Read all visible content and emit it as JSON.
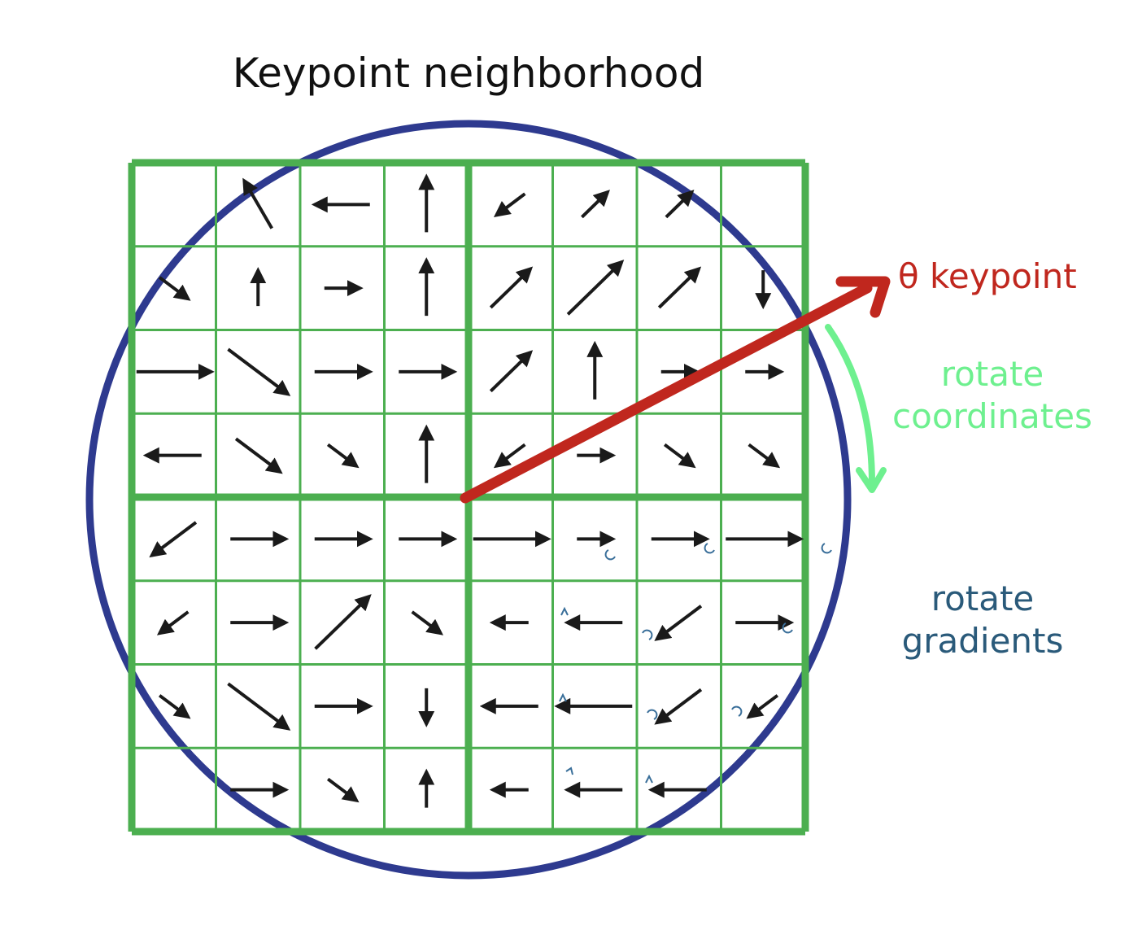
{
  "title": "Keypoint neighborhood",
  "labels": {
    "theta_keypoint": "θ keypoint",
    "rotate_coordinates_line1": "rotate",
    "rotate_coordinates_line2": "coordinates",
    "rotate_gradients_line1": "rotate",
    "rotate_gradients_line2": "gradients"
  },
  "grid": {
    "cells_per_side": 8,
    "quadrants_per_side": 2
  },
  "gradient_arrows": [
    {
      "row": 0,
      "col": 1,
      "dir": "up-left",
      "len": "medium"
    },
    {
      "row": 0,
      "col": 2,
      "dir": "left",
      "len": "medium"
    },
    {
      "row": 0,
      "col": 3,
      "dir": "up",
      "len": "medium"
    },
    {
      "row": 0,
      "col": 4,
      "dir": "down-left",
      "len": "short"
    },
    {
      "row": 0,
      "col": 5,
      "dir": "up-right",
      "len": "short"
    },
    {
      "row": 0,
      "col": 6,
      "dir": "up-right",
      "len": "short"
    },
    {
      "row": 1,
      "col": 0,
      "dir": "down-right",
      "len": "short"
    },
    {
      "row": 1,
      "col": 1,
      "dir": "up",
      "len": "short"
    },
    {
      "row": 1,
      "col": 2,
      "dir": "right",
      "len": "short"
    },
    {
      "row": 1,
      "col": 3,
      "dir": "up",
      "len": "medium"
    },
    {
      "row": 1,
      "col": 4,
      "dir": "up-right",
      "len": "medium"
    },
    {
      "row": 1,
      "col": 5,
      "dir": "up-right",
      "len": "long"
    },
    {
      "row": 1,
      "col": 6,
      "dir": "up-right",
      "len": "medium"
    },
    {
      "row": 1,
      "col": 7,
      "dir": "down",
      "len": "short"
    },
    {
      "row": 2,
      "col": 2,
      "dir": "right",
      "len": "medium"
    },
    {
      "row": 2,
      "col": 3,
      "dir": "right",
      "len": "medium"
    },
    {
      "row": 2,
      "col": 4,
      "dir": "up-right",
      "len": "medium"
    },
    {
      "row": 2,
      "col": 5,
      "dir": "up",
      "len": "medium"
    },
    {
      "row": 2,
      "col": 6,
      "dir": "right",
      "len": "short"
    },
    {
      "row": 2,
      "col": 7,
      "dir": "right",
      "len": "short"
    },
    {
      "row": 2,
      "col": 0,
      "dir": "right",
      "len": "long"
    },
    {
      "row": 2,
      "col": 1,
      "dir": "down-right",
      "len": "long"
    },
    {
      "row": 3,
      "col": 0,
      "dir": "left",
      "len": "medium"
    },
    {
      "row": 3,
      "col": 1,
      "dir": "down-right",
      "len": "medium"
    },
    {
      "row": 3,
      "col": 2,
      "dir": "down-right",
      "len": "short"
    },
    {
      "row": 3,
      "col": 3,
      "dir": "up",
      "len": "medium"
    },
    {
      "row": 3,
      "col": 4,
      "dir": "down-left",
      "len": "short"
    },
    {
      "row": 3,
      "col": 5,
      "dir": "right",
      "len": "short"
    },
    {
      "row": 3,
      "col": 6,
      "dir": "down-right",
      "len": "short"
    },
    {
      "row": 3,
      "col": 7,
      "dir": "down-right",
      "len": "short"
    },
    {
      "row": 4,
      "col": 0,
      "dir": "down-left",
      "len": "medium"
    },
    {
      "row": 4,
      "col": 1,
      "dir": "right",
      "len": "medium"
    },
    {
      "row": 4,
      "col": 2,
      "dir": "right",
      "len": "medium"
    },
    {
      "row": 4,
      "col": 3,
      "dir": "right",
      "len": "medium"
    },
    {
      "row": 4,
      "col": 4,
      "dir": "right",
      "len": "long"
    },
    {
      "row": 4,
      "col": 5,
      "dir": "right",
      "len": "short"
    },
    {
      "row": 4,
      "col": 6,
      "dir": "right",
      "len": "medium"
    },
    {
      "row": 4,
      "col": 7,
      "dir": "right",
      "len": "long"
    },
    {
      "row": 5,
      "col": 0,
      "dir": "down-left",
      "len": "short"
    },
    {
      "row": 5,
      "col": 1,
      "dir": "right",
      "len": "medium"
    },
    {
      "row": 5,
      "col": 2,
      "dir": "up-right",
      "len": "long"
    },
    {
      "row": 5,
      "col": 3,
      "dir": "down-right",
      "len": "short"
    },
    {
      "row": 5,
      "col": 4,
      "dir": "left",
      "len": "short"
    },
    {
      "row": 5,
      "col": 5,
      "dir": "left",
      "len": "medium"
    },
    {
      "row": 5,
      "col": 6,
      "dir": "down-left",
      "len": "medium"
    },
    {
      "row": 5,
      "col": 7,
      "dir": "right",
      "len": "medium"
    },
    {
      "row": 6,
      "col": 0,
      "dir": "down-right",
      "len": "short"
    },
    {
      "row": 6,
      "col": 1,
      "dir": "down-right",
      "len": "long"
    },
    {
      "row": 6,
      "col": 2,
      "dir": "right",
      "len": "medium"
    },
    {
      "row": 6,
      "col": 3,
      "dir": "down",
      "len": "short"
    },
    {
      "row": 6,
      "col": 4,
      "dir": "left",
      "len": "medium"
    },
    {
      "row": 6,
      "col": 5,
      "dir": "left",
      "len": "long"
    },
    {
      "row": 6,
      "col": 6,
      "dir": "down-left",
      "len": "medium"
    },
    {
      "row": 6,
      "col": 7,
      "dir": "down-left",
      "len": "short"
    },
    {
      "row": 7,
      "col": 1,
      "dir": "right",
      "len": "medium"
    },
    {
      "row": 7,
      "col": 2,
      "dir": "down-right",
      "len": "short"
    },
    {
      "row": 7,
      "col": 3,
      "dir": "up",
      "len": "short"
    },
    {
      "row": 7,
      "col": 4,
      "dir": "left",
      "len": "short"
    },
    {
      "row": 7,
      "col": 5,
      "dir": "left",
      "len": "medium"
    },
    {
      "row": 7,
      "col": 6,
      "dir": "left",
      "len": "medium"
    }
  ],
  "colors": {
    "circle": "#2e3a8f",
    "grid": "#4caf50",
    "arrow": "#1a1a1a",
    "keypoint_arrow": "#c0271e",
    "rotate_coordinates": "#6ef08f",
    "rotate_gradients": "#2a5a7a",
    "small_arrows": "#3a6f9a"
  }
}
